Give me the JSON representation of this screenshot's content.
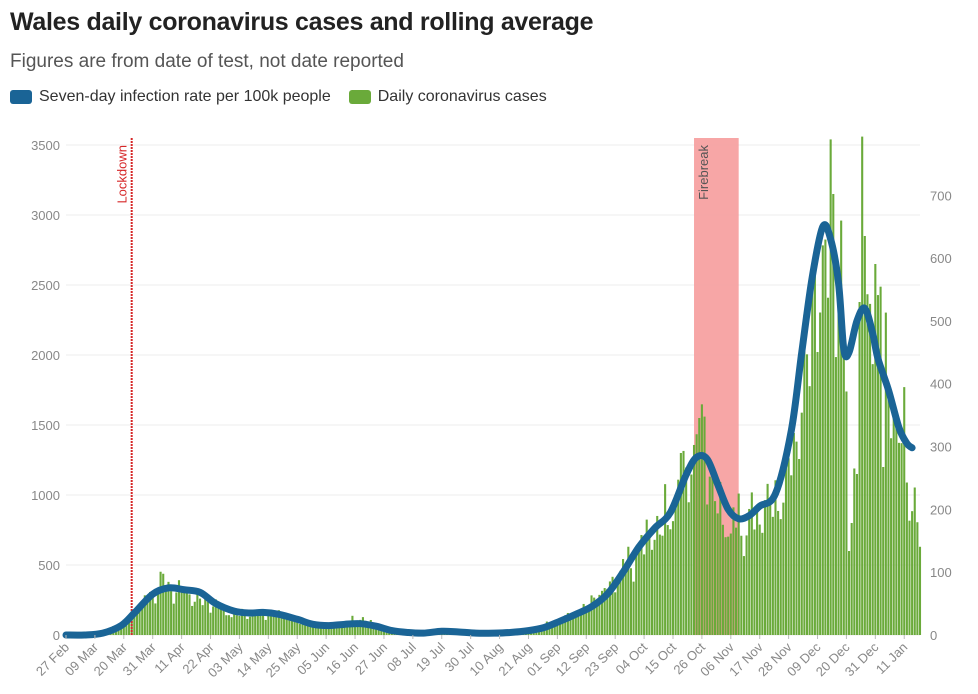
{
  "chart_data": {
    "type": "bar",
    "title": "Wales daily coronavirus cases and rolling average",
    "subtitle": "Figures are from date of test, not date reported",
    "legend": {
      "placement": "top-left",
      "items": [
        {
          "label": "Seven-day infection rate per 100k people",
          "color": "#1a6496"
        },
        {
          "label": "Daily coronavirus cases",
          "color": "#6aaa3a"
        }
      ]
    },
    "x_start": "2020-02-27",
    "x_end": "2021-01-17",
    "x_tick_labels": [
      "27 Feb",
      "09 Mar",
      "20 Mar",
      "31 Mar",
      "11 Apr",
      "22 Apr",
      "03 May",
      "14 May",
      "25 May",
      "05 Jun",
      "16 Jun",
      "27 Jun",
      "08 Jul",
      "19 Jul",
      "30 Jul",
      "10 Aug",
      "21 Aug",
      "01 Sep",
      "12 Sep",
      "23 Sep",
      "04 Oct",
      "15 Oct",
      "26 Oct",
      "06 Nov",
      "17 Nov",
      "28 Nov",
      "09 Dec",
      "20 Dec",
      "31 Dec",
      "11 Jan"
    ],
    "y_left": {
      "min": 0,
      "max": 3500,
      "ticks": [
        0,
        500,
        1000,
        1500,
        2000,
        2500,
        3000,
        3500
      ]
    },
    "y_right": {
      "min": 0,
      "max": 780,
      "ticks": [
        0,
        100,
        200,
        300,
        400,
        500,
        600,
        700
      ]
    },
    "grid": true,
    "annotations": [
      {
        "label": "Lockdown",
        "type": "line",
        "date": "2020-03-23",
        "color": "#d62728"
      },
      {
        "label": "Firebreak",
        "type": "band",
        "start": "2020-10-23",
        "end": "2020-11-09",
        "color": "#f7a1a1"
      }
    ],
    "series": [
      {
        "name": "Daily coronavirus cases",
        "axis": "left",
        "color": "#6aaa3a",
        "anchors": [
          [
            "2020-02-27",
            0
          ],
          [
            "2020-03-05",
            2
          ],
          [
            "2020-03-12",
            15
          ],
          [
            "2020-03-19",
            80
          ],
          [
            "2020-03-24",
            150
          ],
          [
            "2020-03-31",
            300
          ],
          [
            "2020-04-04",
            370
          ],
          [
            "2020-04-08",
            330
          ],
          [
            "2020-04-13",
            310
          ],
          [
            "2020-04-18",
            280
          ],
          [
            "2020-04-22",
            230
          ],
          [
            "2020-04-28",
            170
          ],
          [
            "2020-05-03",
            150
          ],
          [
            "2020-05-09",
            130
          ],
          [
            "2020-05-14",
            160
          ],
          [
            "2020-05-20",
            150
          ],
          [
            "2020-05-25",
            100
          ],
          [
            "2020-05-31",
            70
          ],
          [
            "2020-06-05",
            55
          ],
          [
            "2020-06-12",
            80
          ],
          [
            "2020-06-16",
            110
          ],
          [
            "2020-06-22",
            90
          ],
          [
            "2020-06-27",
            50
          ],
          [
            "2020-07-03",
            25
          ],
          [
            "2020-07-08",
            15
          ],
          [
            "2020-07-15",
            15
          ],
          [
            "2020-07-19",
            30
          ],
          [
            "2020-07-25",
            25
          ],
          [
            "2020-07-30",
            20
          ],
          [
            "2020-08-05",
            15
          ],
          [
            "2020-08-10",
            20
          ],
          [
            "2020-08-16",
            30
          ],
          [
            "2020-08-21",
            40
          ],
          [
            "2020-08-27",
            70
          ],
          [
            "2020-09-01",
            110
          ],
          [
            "2020-09-07",
            150
          ],
          [
            "2020-09-12",
            190
          ],
          [
            "2020-09-17",
            300
          ],
          [
            "2020-09-23",
            400
          ],
          [
            "2020-09-28",
            520
          ],
          [
            "2020-10-04",
            680
          ],
          [
            "2020-10-09",
            760
          ],
          [
            "2020-10-15",
            900
          ],
          [
            "2020-10-19",
            1150
          ],
          [
            "2020-10-22",
            1200
          ],
          [
            "2020-10-26",
            1400
          ],
          [
            "2020-10-30",
            1100
          ],
          [
            "2020-11-03",
            900
          ],
          [
            "2020-11-06",
            750
          ],
          [
            "2020-11-10",
            780
          ],
          [
            "2020-11-14",
            850
          ],
          [
            "2020-11-17",
            950
          ],
          [
            "2020-11-21",
            880
          ],
          [
            "2020-11-25",
            1050
          ],
          [
            "2020-11-28",
            1200
          ],
          [
            "2020-12-02",
            1500
          ],
          [
            "2020-12-05",
            2000
          ],
          [
            "2020-12-08",
            2500
          ],
          [
            "2020-12-11",
            2700
          ],
          [
            "2020-12-14",
            3000
          ],
          [
            "2020-12-17",
            2600
          ],
          [
            "2020-12-20",
            2300
          ],
          [
            "2020-12-23",
            1700
          ],
          [
            "2020-12-26",
            2000
          ],
          [
            "2020-12-29",
            2300
          ],
          [
            "2021-01-01",
            2500
          ],
          [
            "2021-01-04",
            2000
          ],
          [
            "2021-01-07",
            1600
          ],
          [
            "2021-01-10",
            1400
          ],
          [
            "2021-01-13",
            1200
          ],
          [
            "2021-01-15",
            900
          ],
          [
            "2021-01-17",
            680
          ]
        ],
        "spikes": [
          [
            "2020-12-14",
            3540
          ],
          [
            "2020-12-15",
            3150
          ],
          [
            "2020-12-26",
            3560
          ],
          [
            "2020-12-27",
            2850
          ],
          [
            "2020-12-31",
            2650
          ],
          [
            "2020-10-25",
            1550
          ],
          [
            "2020-10-27",
            1560
          ],
          [
            "2020-10-18",
            1300
          ],
          [
            "2020-12-21",
            600
          ],
          [
            "2020-12-22",
            800
          ],
          [
            "2020-12-24",
            1150
          ],
          [
            "2021-01-03",
            1200
          ]
        ]
      },
      {
        "name": "Seven-day infection rate per 100k people",
        "axis": "right",
        "color": "#1a6496",
        "points": [
          [
            "2020-02-27",
            0
          ],
          [
            "2020-03-05",
            0
          ],
          [
            "2020-03-12",
            3
          ],
          [
            "2020-03-19",
            15
          ],
          [
            "2020-03-24",
            35
          ],
          [
            "2020-03-31",
            65
          ],
          [
            "2020-04-06",
            75
          ],
          [
            "2020-04-12",
            72
          ],
          [
            "2020-04-18",
            68
          ],
          [
            "2020-04-24",
            50
          ],
          [
            "2020-05-01",
            38
          ],
          [
            "2020-05-07",
            35
          ],
          [
            "2020-05-12",
            36
          ],
          [
            "2020-05-18",
            33
          ],
          [
            "2020-05-25",
            25
          ],
          [
            "2020-05-31",
            17
          ],
          [
            "2020-06-06",
            15
          ],
          [
            "2020-06-12",
            17
          ],
          [
            "2020-06-18",
            18
          ],
          [
            "2020-06-24",
            14
          ],
          [
            "2020-06-30",
            7
          ],
          [
            "2020-07-06",
            4
          ],
          [
            "2020-07-12",
            3
          ],
          [
            "2020-07-19",
            6
          ],
          [
            "2020-07-25",
            5
          ],
          [
            "2020-08-01",
            3
          ],
          [
            "2020-08-08",
            3
          ],
          [
            "2020-08-14",
            4
          ],
          [
            "2020-08-21",
            7
          ],
          [
            "2020-08-27",
            12
          ],
          [
            "2020-09-02",
            22
          ],
          [
            "2020-09-08",
            33
          ],
          [
            "2020-09-14",
            45
          ],
          [
            "2020-09-20",
            65
          ],
          [
            "2020-09-26",
            100
          ],
          [
            "2020-10-02",
            140
          ],
          [
            "2020-10-08",
            170
          ],
          [
            "2020-10-14",
            195
          ],
          [
            "2020-10-20",
            255
          ],
          [
            "2020-10-24",
            283
          ],
          [
            "2020-10-28",
            280
          ],
          [
            "2020-11-01",
            240
          ],
          [
            "2020-11-05",
            200
          ],
          [
            "2020-11-09",
            185
          ],
          [
            "2020-11-13",
            190
          ],
          [
            "2020-11-17",
            205
          ],
          [
            "2020-11-23",
            225
          ],
          [
            "2020-11-29",
            325
          ],
          [
            "2020-12-03",
            450
          ],
          [
            "2020-12-07",
            570
          ],
          [
            "2020-12-11",
            650
          ],
          [
            "2020-12-14",
            630
          ],
          [
            "2020-12-17",
            560
          ],
          [
            "2020-12-19",
            455
          ],
          [
            "2020-12-21",
            450
          ],
          [
            "2020-12-24",
            500
          ],
          [
            "2020-12-27",
            520
          ],
          [
            "2020-12-30",
            480
          ],
          [
            "2021-01-01",
            440
          ],
          [
            "2021-01-05",
            390
          ],
          [
            "2021-01-09",
            330
          ],
          [
            "2021-01-12",
            305
          ],
          [
            "2021-01-14",
            298
          ]
        ]
      }
    ]
  }
}
